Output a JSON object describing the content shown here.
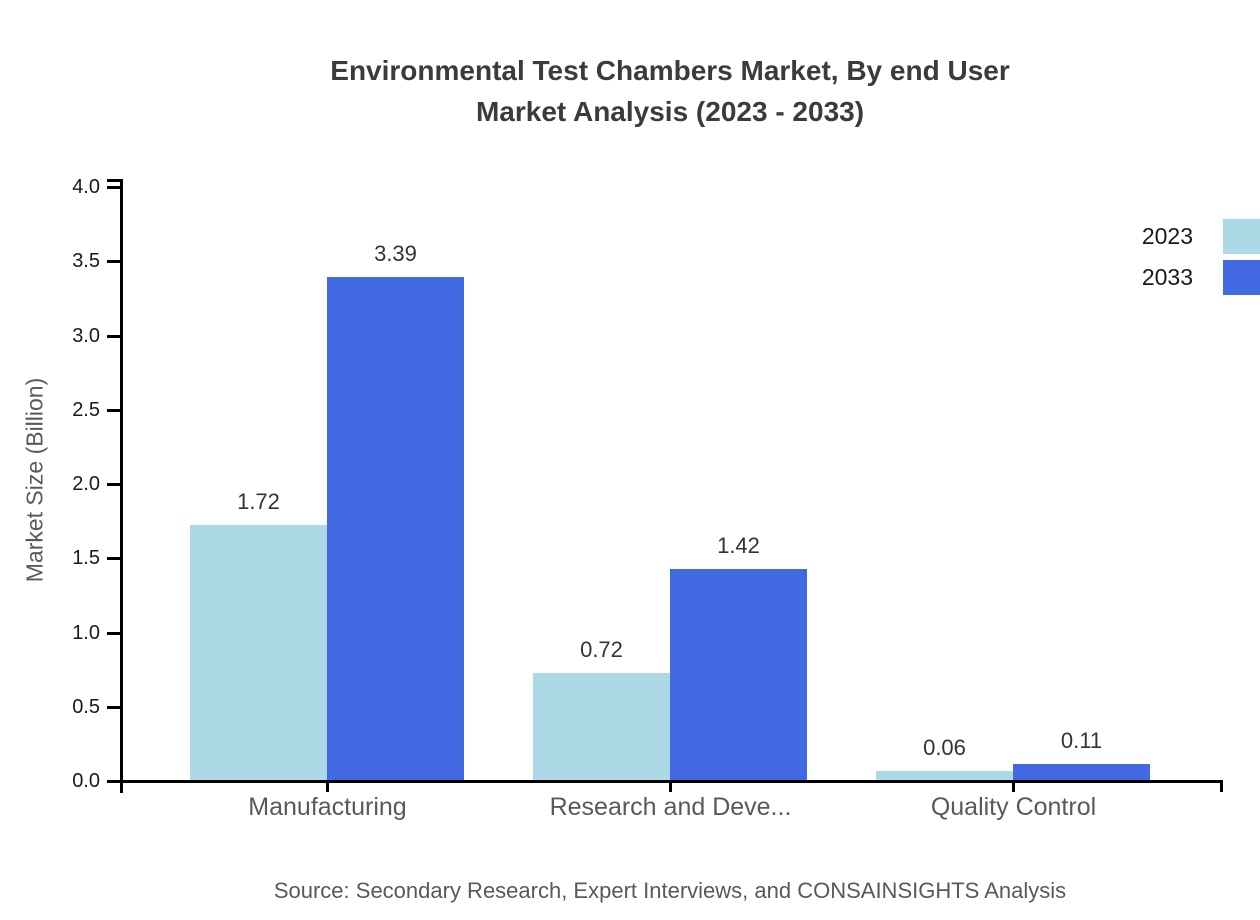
{
  "title": {
    "line1": "Environmental Test Chambers Market, By end User",
    "line2": "Market Analysis (2023 - 2033)"
  },
  "source": "Source: Secondary Research, Expert Interviews, and CONSAINSIGHTS Analysis",
  "chart_data": {
    "type": "bar",
    "title": "Environmental Test Chambers Market, By end User Market Analysis (2023 - 2033)",
    "categories": [
      "Manufacturing",
      "Research and Deve...",
      "Quality Control"
    ],
    "series": [
      {
        "name": "2023",
        "color": "#ADD8E6",
        "values": [
          1.72,
          0.72,
          0.06
        ]
      },
      {
        "name": "2033",
        "color": "#4169E1",
        "values": [
          3.39,
          1.42,
          0.11
        ]
      }
    ],
    "xlabel": "",
    "ylabel": "Market Size (Billion)",
    "ylim": [
      0.0,
      4.0
    ],
    "yticks": [
      0.0,
      0.5,
      1.0,
      1.5,
      2.0,
      2.5,
      3.0,
      3.5,
      4.0
    ],
    "grid": false,
    "legend_position": "top-right",
    "axis_color": "#000000"
  }
}
